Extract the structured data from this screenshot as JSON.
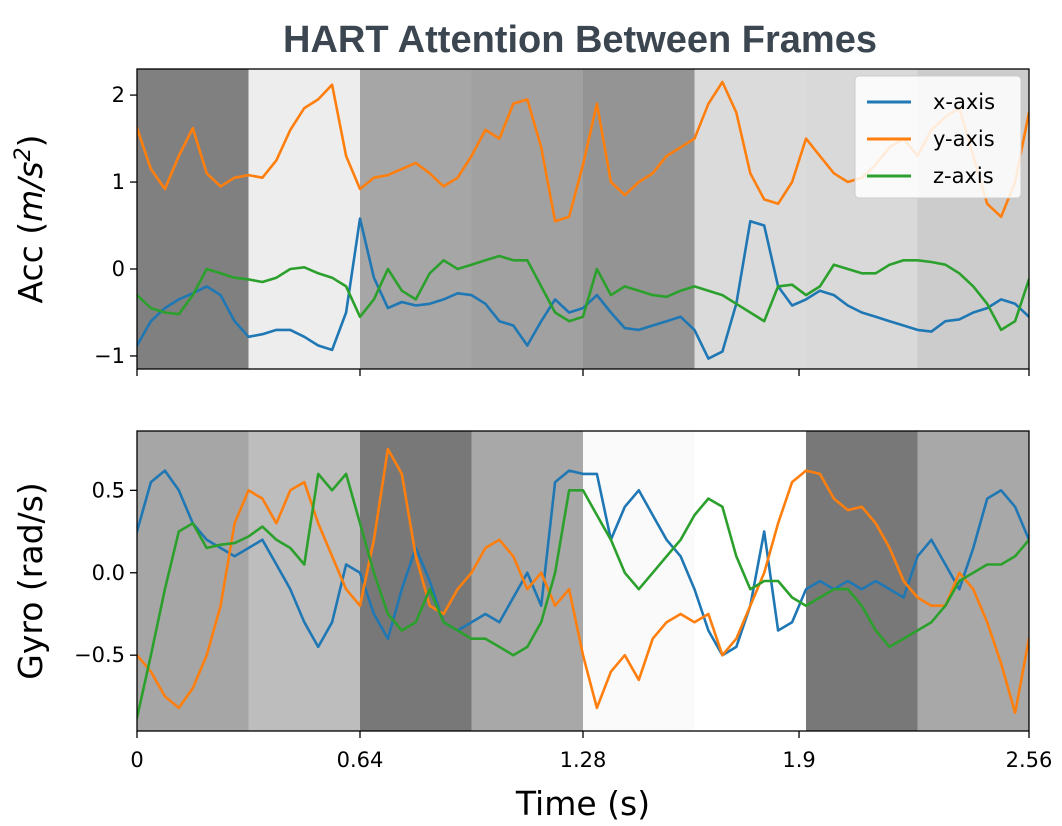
{
  "chart_data": {
    "type": "line",
    "title": "HART Attention Between Frames",
    "xlabel": "Time (s)",
    "xlim": [
      0,
      2.56
    ],
    "x_ticks": [
      0,
      0.64,
      1.28,
      1.9,
      2.56
    ],
    "x_tick_labels": [
      "0",
      "0.64",
      "1.28",
      "1.9",
      "2.56"
    ],
    "frame_boundaries": [
      0,
      0.32,
      0.64,
      0.96,
      1.28,
      1.6,
      1.92,
      2.24,
      2.56
    ],
    "colors": {
      "x-axis": "#1f77b4",
      "y-axis": "#ff7f0e",
      "z-axis": "#2ca02c"
    },
    "panels": [
      {
        "id": "acc",
        "ylabel": "Acc (m/s²)",
        "ylabel_parts": [
          "Acc (",
          "m/s",
          "2",
          ")"
        ],
        "ylim": [
          -1.15,
          2.3
        ],
        "y_ticks": [
          -1,
          0,
          1,
          2
        ],
        "y_tick_labels": [
          "−1",
          "0",
          "1",
          "2"
        ],
        "legend": {
          "position": "top-right",
          "entries": [
            "x-axis",
            "y-axis",
            "z-axis"
          ]
        },
        "frame_shades": [
          0.5,
          0.93,
          0.65,
          0.63,
          0.58,
          0.86,
          0.85,
          0.8
        ],
        "series": [
          {
            "name": "x-axis",
            "x": [
              0,
              0.04,
              0.08,
              0.12,
              0.16,
              0.2,
              0.24,
              0.28,
              0.32,
              0.36,
              0.4,
              0.44,
              0.48,
              0.52,
              0.56,
              0.6,
              0.64,
              0.68,
              0.72,
              0.76,
              0.8,
              0.84,
              0.88,
              0.92,
              0.96,
              1.0,
              1.04,
              1.08,
              1.12,
              1.16,
              1.2,
              1.24,
              1.28,
              1.32,
              1.36,
              1.4,
              1.44,
              1.48,
              1.52,
              1.56,
              1.6,
              1.64,
              1.68,
              1.72,
              1.76,
              1.8,
              1.84,
              1.88,
              1.92,
              1.96,
              2.0,
              2.04,
              2.08,
              2.12,
              2.16,
              2.2,
              2.24,
              2.28,
              2.32,
              2.36,
              2.4,
              2.44,
              2.48,
              2.52,
              2.56
            ],
            "values": [
              -0.88,
              -0.6,
              -0.45,
              -0.35,
              -0.28,
              -0.2,
              -0.3,
              -0.6,
              -0.78,
              -0.75,
              -0.7,
              -0.7,
              -0.78,
              -0.88,
              -0.93,
              -0.5,
              0.58,
              -0.1,
              -0.45,
              -0.38,
              -0.42,
              -0.4,
              -0.35,
              -0.28,
              -0.3,
              -0.4,
              -0.6,
              -0.65,
              -0.88,
              -0.6,
              -0.35,
              -0.5,
              -0.45,
              -0.3,
              -0.5,
              -0.68,
              -0.7,
              -0.65,
              -0.6,
              -0.55,
              -0.7,
              -1.03,
              -0.95,
              -0.4,
              0.55,
              0.5,
              -0.2,
              -0.42,
              -0.35,
              -0.25,
              -0.3,
              -0.42,
              -0.5,
              -0.55,
              -0.6,
              -0.65,
              -0.7,
              -0.72,
              -0.6,
              -0.58,
              -0.5,
              -0.45,
              -0.35,
              -0.4,
              -0.55
            ]
          },
          {
            "name": "y-axis",
            "x": [
              0,
              0.04,
              0.08,
              0.12,
              0.16,
              0.2,
              0.24,
              0.28,
              0.32,
              0.36,
              0.4,
              0.44,
              0.48,
              0.52,
              0.56,
              0.6,
              0.64,
              0.68,
              0.72,
              0.76,
              0.8,
              0.84,
              0.88,
              0.92,
              0.96,
              1.0,
              1.04,
              1.08,
              1.12,
              1.16,
              1.2,
              1.24,
              1.28,
              1.32,
              1.36,
              1.4,
              1.44,
              1.48,
              1.52,
              1.56,
              1.6,
              1.64,
              1.68,
              1.72,
              1.76,
              1.8,
              1.84,
              1.88,
              1.92,
              1.96,
              2.0,
              2.04,
              2.08,
              2.12,
              2.16,
              2.2,
              2.24,
              2.28,
              2.32,
              2.36,
              2.4,
              2.44,
              2.48,
              2.52,
              2.56
            ],
            "values": [
              1.62,
              1.15,
              0.92,
              1.3,
              1.62,
              1.1,
              0.95,
              1.05,
              1.08,
              1.05,
              1.25,
              1.6,
              1.85,
              1.95,
              2.12,
              1.3,
              0.92,
              1.05,
              1.08,
              1.15,
              1.22,
              1.1,
              0.95,
              1.05,
              1.3,
              1.6,
              1.5,
              1.9,
              1.95,
              1.4,
              0.55,
              0.6,
              1.2,
              1.9,
              1.0,
              0.85,
              1.0,
              1.1,
              1.3,
              1.4,
              1.5,
              1.9,
              2.15,
              1.8,
              1.1,
              0.8,
              0.75,
              1.0,
              1.5,
              1.3,
              1.1,
              1.0,
              1.05,
              1.2,
              1.4,
              1.5,
              1.3,
              1.6,
              1.75,
              1.85,
              1.3,
              0.75,
              0.6,
              1.0,
              1.8
            ]
          },
          {
            "name": "z-axis",
            "x": [
              0,
              0.04,
              0.08,
              0.12,
              0.16,
              0.2,
              0.24,
              0.28,
              0.32,
              0.36,
              0.4,
              0.44,
              0.48,
              0.52,
              0.56,
              0.6,
              0.64,
              0.68,
              0.72,
              0.76,
              0.8,
              0.84,
              0.88,
              0.92,
              0.96,
              1.0,
              1.04,
              1.08,
              1.12,
              1.16,
              1.2,
              1.24,
              1.28,
              1.32,
              1.36,
              1.4,
              1.44,
              1.48,
              1.52,
              1.56,
              1.6,
              1.64,
              1.68,
              1.72,
              1.76,
              1.8,
              1.84,
              1.88,
              1.92,
              1.96,
              2.0,
              2.04,
              2.08,
              2.12,
              2.16,
              2.2,
              2.24,
              2.28,
              2.32,
              2.36,
              2.4,
              2.44,
              2.48,
              2.52,
              2.56
            ],
            "values": [
              -0.3,
              -0.45,
              -0.5,
              -0.52,
              -0.3,
              0.0,
              -0.05,
              -0.1,
              -0.12,
              -0.15,
              -0.1,
              0.0,
              0.02,
              -0.05,
              -0.1,
              -0.2,
              -0.55,
              -0.35,
              0.0,
              -0.25,
              -0.35,
              -0.05,
              0.1,
              0.0,
              0.05,
              0.1,
              0.15,
              0.1,
              0.1,
              -0.2,
              -0.5,
              -0.6,
              -0.55,
              0.0,
              -0.3,
              -0.2,
              -0.25,
              -0.3,
              -0.32,
              -0.25,
              -0.2,
              -0.25,
              -0.3,
              -0.4,
              -0.5,
              -0.6,
              -0.2,
              -0.18,
              -0.3,
              -0.2,
              0.05,
              0.0,
              -0.05,
              -0.05,
              0.05,
              0.1,
              0.1,
              0.08,
              0.05,
              -0.05,
              -0.2,
              -0.4,
              -0.7,
              -0.6,
              -0.12
            ]
          }
        ]
      },
      {
        "id": "gyro",
        "ylabel": "Gyro (rad/s)",
        "ylim": [
          -0.96,
          0.86
        ],
        "y_ticks": [
          -0.5,
          0.0,
          0.5
        ],
        "y_tick_labels": [
          "−0.5",
          "0.0",
          "0.5"
        ],
        "frame_shades": [
          0.65,
          0.74,
          0.47,
          0.66,
          0.98,
          1.0,
          0.47,
          0.66
        ],
        "series": [
          {
            "name": "x-axis",
            "x": [
              0,
              0.04,
              0.08,
              0.12,
              0.16,
              0.2,
              0.24,
              0.28,
              0.32,
              0.36,
              0.4,
              0.44,
              0.48,
              0.52,
              0.56,
              0.6,
              0.64,
              0.68,
              0.72,
              0.76,
              0.8,
              0.84,
              0.88,
              0.92,
              0.96,
              1.0,
              1.04,
              1.08,
              1.12,
              1.16,
              1.2,
              1.24,
              1.28,
              1.32,
              1.36,
              1.4,
              1.44,
              1.48,
              1.52,
              1.56,
              1.6,
              1.64,
              1.68,
              1.72,
              1.76,
              1.8,
              1.84,
              1.88,
              1.92,
              1.96,
              2.0,
              2.04,
              2.08,
              2.12,
              2.16,
              2.2,
              2.24,
              2.28,
              2.32,
              2.36,
              2.4,
              2.44,
              2.48,
              2.52,
              2.56
            ],
            "values": [
              0.25,
              0.55,
              0.62,
              0.5,
              0.3,
              0.2,
              0.15,
              0.1,
              0.15,
              0.2,
              0.05,
              -0.1,
              -0.3,
              -0.45,
              -0.3,
              0.05,
              0.0,
              -0.25,
              -0.4,
              -0.1,
              0.15,
              -0.05,
              -0.3,
              -0.35,
              -0.3,
              -0.25,
              -0.3,
              -0.15,
              0.0,
              -0.2,
              0.55,
              0.62,
              0.6,
              0.6,
              0.2,
              0.4,
              0.5,
              0.35,
              0.2,
              0.1,
              -0.1,
              -0.35,
              -0.5,
              -0.45,
              -0.2,
              0.25,
              -0.35,
              -0.3,
              -0.1,
              -0.05,
              -0.1,
              -0.05,
              -0.1,
              -0.05,
              -0.1,
              -0.15,
              0.1,
              0.2,
              0.05,
              -0.1,
              0.15,
              0.45,
              0.5,
              0.4,
              0.2
            ]
          },
          {
            "name": "y-axis",
            "x": [
              0,
              0.04,
              0.08,
              0.12,
              0.16,
              0.2,
              0.24,
              0.28,
              0.32,
              0.36,
              0.4,
              0.44,
              0.48,
              0.52,
              0.56,
              0.6,
              0.64,
              0.68,
              0.72,
              0.76,
              0.8,
              0.84,
              0.88,
              0.92,
              0.96,
              1.0,
              1.04,
              1.08,
              1.12,
              1.16,
              1.2,
              1.24,
              1.28,
              1.32,
              1.36,
              1.4,
              1.44,
              1.48,
              1.52,
              1.56,
              1.6,
              1.64,
              1.68,
              1.72,
              1.76,
              1.8,
              1.84,
              1.88,
              1.92,
              1.96,
              2.0,
              2.04,
              2.08,
              2.12,
              2.16,
              2.2,
              2.24,
              2.28,
              2.32,
              2.36,
              2.4,
              2.44,
              2.48,
              2.52,
              2.56
            ],
            "values": [
              -0.5,
              -0.6,
              -0.75,
              -0.82,
              -0.7,
              -0.5,
              -0.2,
              0.3,
              0.5,
              0.45,
              0.3,
              0.5,
              0.55,
              0.3,
              0.1,
              -0.1,
              -0.2,
              0.2,
              0.75,
              0.6,
              0.1,
              -0.2,
              -0.25,
              -0.1,
              0.0,
              0.15,
              0.2,
              0.1,
              -0.1,
              0.0,
              -0.2,
              -0.1,
              -0.5,
              -0.82,
              -0.6,
              -0.5,
              -0.65,
              -0.4,
              -0.3,
              -0.25,
              -0.3,
              -0.25,
              -0.5,
              -0.4,
              -0.2,
              0.0,
              0.3,
              0.55,
              0.62,
              0.6,
              0.45,
              0.38,
              0.4,
              0.3,
              0.15,
              -0.05,
              -0.15,
              -0.2,
              -0.2,
              0.0,
              -0.1,
              -0.3,
              -0.55,
              -0.85,
              -0.4
            ]
          },
          {
            "name": "z-axis",
            "x": [
              0,
              0.04,
              0.08,
              0.12,
              0.16,
              0.2,
              0.24,
              0.28,
              0.32,
              0.36,
              0.4,
              0.44,
              0.48,
              0.52,
              0.56,
              0.6,
              0.64,
              0.68,
              0.72,
              0.76,
              0.8,
              0.84,
              0.88,
              0.92,
              0.96,
              1.0,
              1.04,
              1.08,
              1.12,
              1.16,
              1.2,
              1.24,
              1.28,
              1.32,
              1.36,
              1.4,
              1.44,
              1.48,
              1.52,
              1.56,
              1.6,
              1.64,
              1.68,
              1.72,
              1.76,
              1.8,
              1.84,
              1.88,
              1.92,
              1.96,
              2.0,
              2.04,
              2.08,
              2.12,
              2.16,
              2.2,
              2.24,
              2.28,
              2.32,
              2.36,
              2.4,
              2.44,
              2.48,
              2.52,
              2.56
            ],
            "values": [
              -0.88,
              -0.5,
              -0.1,
              0.25,
              0.3,
              0.15,
              0.17,
              0.18,
              0.22,
              0.28,
              0.2,
              0.15,
              0.05,
              0.6,
              0.5,
              0.6,
              0.3,
              0.0,
              -0.25,
              -0.35,
              -0.3,
              -0.1,
              -0.3,
              -0.35,
              -0.4,
              -0.4,
              -0.45,
              -0.5,
              -0.45,
              -0.3,
              0.0,
              0.5,
              0.5,
              0.35,
              0.2,
              0.0,
              -0.1,
              0.0,
              0.1,
              0.2,
              0.35,
              0.45,
              0.4,
              0.1,
              -0.1,
              -0.05,
              -0.05,
              -0.15,
              -0.2,
              -0.15,
              -0.1,
              -0.1,
              -0.2,
              -0.35,
              -0.45,
              -0.4,
              -0.35,
              -0.3,
              -0.2,
              -0.05,
              0.0,
              0.05,
              0.05,
              0.1,
              0.2
            ]
          }
        ]
      }
    ]
  }
}
